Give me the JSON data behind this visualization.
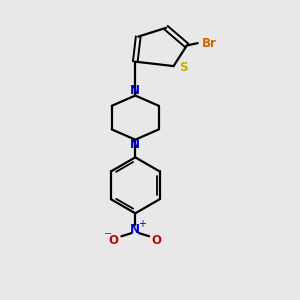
{
  "background_color": "#e8e8e8",
  "bond_color": "#000000",
  "N_color": "#0000cc",
  "S_color": "#ccaa00",
  "Br_color": "#cc6600",
  "O_color": "#cc0000",
  "line_width": 1.6,
  "figsize": [
    3.0,
    3.0
  ],
  "dpi": 100,
  "xlim": [
    0,
    10
  ],
  "ylim": [
    0,
    10
  ]
}
